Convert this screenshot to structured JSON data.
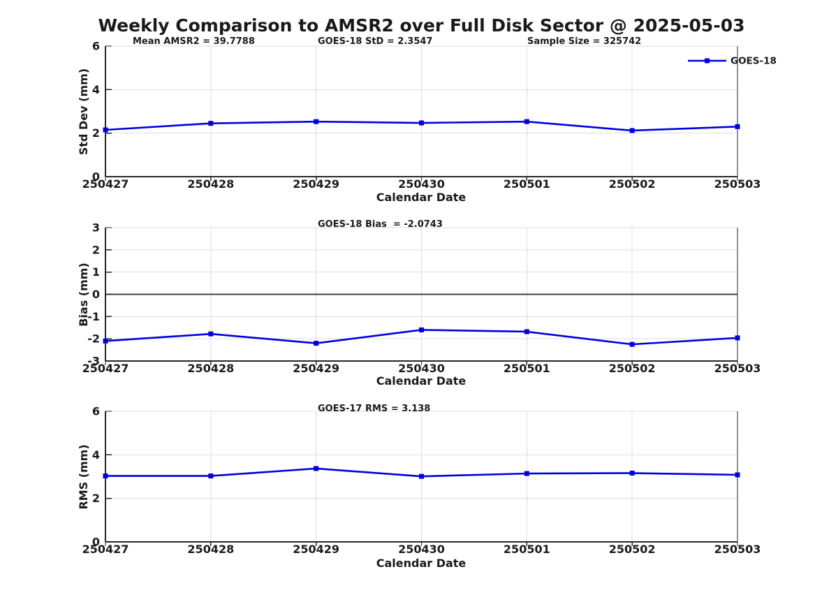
{
  "title": "Weekly Comparison to AMSR2 over Full Disk Sector @ 2025-05-03",
  "colors": {
    "line": "#0000dd",
    "marker": "#0000dd",
    "zero_line": "#404040",
    "grid": "#dcdcdc",
    "axis": "#262626",
    "text": "#1a1a1a",
    "background": "#ffffff"
  },
  "chart_data": [
    {
      "type": "line",
      "name": "std-dev-vs-date",
      "ylabel": "Std Dev (mm)",
      "xlabel": "Calendar Date",
      "ylim": [
        0,
        6
      ],
      "yticks": [
        0,
        2,
        4,
        6
      ],
      "grid": true,
      "categories": [
        "250427",
        "250428",
        "250429",
        "250430",
        "250501",
        "250502",
        "250503"
      ],
      "series": [
        {
          "name": "GOES-18",
          "values": [
            2.15,
            2.45,
            2.53,
            2.47,
            2.53,
            2.12,
            2.3
          ]
        }
      ],
      "annotations": [
        "Mean AMSR2 = 39.7788",
        "GOES-18 StD = 2.3547",
        "Sample Size = 325742"
      ],
      "legend": {
        "label": "GOES-18",
        "position": "northeast"
      }
    },
    {
      "type": "line",
      "name": "bias-vs-date",
      "ylabel": "Bias (mm)",
      "xlabel": "Calendar Date",
      "ylim": [
        -3,
        3
      ],
      "yticks": [
        -3,
        -2,
        -1,
        0,
        1,
        2,
        3
      ],
      "grid": true,
      "zero_line": true,
      "categories": [
        "250427",
        "250428",
        "250429",
        "250430",
        "250501",
        "250502",
        "250503"
      ],
      "series": [
        {
          "name": "GOES-18",
          "values": [
            -2.1,
            -1.78,
            -2.2,
            -1.6,
            -1.68,
            -2.25,
            -1.96
          ]
        }
      ],
      "annotations": [
        "GOES-18 Bias  = -2.0743"
      ]
    },
    {
      "type": "line",
      "name": "rms-vs-date",
      "ylabel": "RMS (mm)",
      "xlabel": "Calendar Date",
      "ylim": [
        0,
        6
      ],
      "yticks": [
        0,
        2,
        4,
        6
      ],
      "grid": true,
      "categories": [
        "250427",
        "250428",
        "250429",
        "250430",
        "250501",
        "250502",
        "250503"
      ],
      "series": [
        {
          "name": "GOES-17",
          "values": [
            3.03,
            3.03,
            3.37,
            3.01,
            3.14,
            3.16,
            3.08
          ]
        }
      ],
      "annotations": [
        "GOES-17 RMS = 3.138"
      ]
    }
  ]
}
